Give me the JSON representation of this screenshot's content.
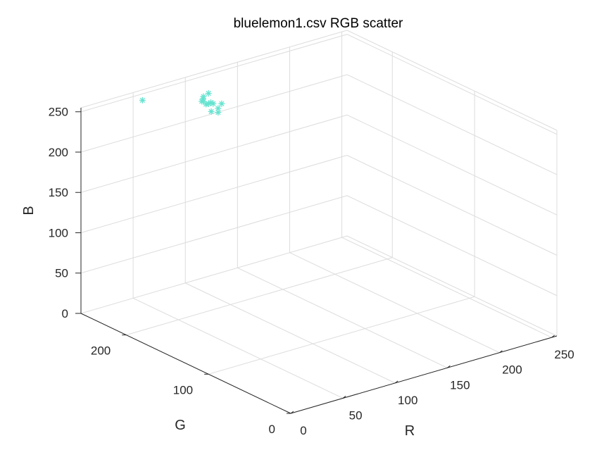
{
  "chart_data": {
    "type": "scatter",
    "title": "bluelemon1.csv RGB scatter",
    "xlabel": "R",
    "ylabel": "G",
    "zlabel": "B",
    "xlim": [
      0,
      255
    ],
    "ylim": [
      0,
      255
    ],
    "zlim": [
      0,
      255
    ],
    "xticks": [
      "0",
      "50",
      "100",
      "150",
      "200",
      "250"
    ],
    "yticks": [
      "0",
      "100",
      "200"
    ],
    "zticks": [
      "0",
      "50",
      "100",
      "150",
      "200",
      "250"
    ],
    "grid": true,
    "marker": "*",
    "marker_color": "#66e3d0",
    "points": [
      {
        "r": 112,
        "g": 242,
        "b": 237
      },
      {
        "r": 102,
        "g": 236,
        "b": 237
      },
      {
        "r": 100,
        "g": 235,
        "b": 235
      },
      {
        "r": 104,
        "g": 238,
        "b": 238
      },
      {
        "r": 104,
        "g": 238,
        "b": 232
      },
      {
        "r": 102,
        "g": 226,
        "b": 226
      },
      {
        "r": 107,
        "g": 224,
        "b": 229
      },
      {
        "r": 107,
        "g": 224,
        "b": 224
      },
      {
        "r": 108,
        "g": 240,
        "b": 226
      },
      {
        "r": 112,
        "g": 242,
        "b": 224
      },
      {
        "r": 115,
        "g": 243,
        "b": 224
      },
      {
        "r": 118,
        "g": 244,
        "b": 221
      },
      {
        "r": 123,
        "g": 240,
        "b": 221
      },
      {
        "r": 55,
        "g": 250,
        "b": 246
      }
    ]
  }
}
